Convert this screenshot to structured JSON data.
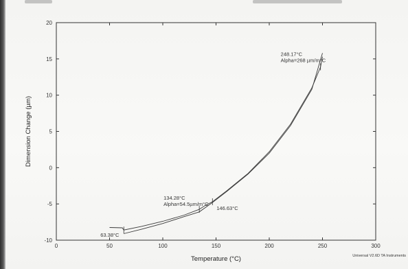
{
  "chart_data": {
    "type": "line",
    "xlabel": "Temperature (°C)",
    "ylabel": "Dimension Change (µm)",
    "xlim": [
      0,
      300
    ],
    "ylim": [
      -10,
      20
    ],
    "x_ticks": [
      "0",
      "50",
      "100",
      "150",
      "200",
      "250",
      "300"
    ],
    "y_ticks": [
      "20",
      "15",
      "10",
      "5",
      "0",
      "-5",
      "-10"
    ],
    "grid": false,
    "series": [
      {
        "points": [
          [
            50,
            -8.25
          ],
          [
            62,
            -8.3
          ],
          [
            63.38,
            -8.6
          ],
          [
            80,
            -8.1
          ],
          [
            100,
            -7.4
          ],
          [
            120,
            -6.55
          ],
          [
            134.28,
            -5.75
          ],
          [
            140,
            -5.2
          ],
          [
            146.63,
            -4.7
          ],
          [
            160,
            -3.2
          ],
          [
            180,
            -0.8
          ],
          [
            200,
            2.2
          ],
          [
            220,
            6.0
          ],
          [
            240,
            11.0
          ],
          [
            248.17,
            13.9
          ],
          [
            250,
            15.3
          ]
        ]
      },
      {
        "points": [
          [
            63.38,
            -9.1
          ],
          [
            80,
            -8.5
          ],
          [
            100,
            -7.7
          ],
          [
            120,
            -6.75
          ],
          [
            134.28,
            -6.1
          ],
          [
            146.63,
            -4.8
          ],
          [
            160,
            -3.3
          ],
          [
            180,
            -0.9
          ],
          [
            200,
            2.0
          ],
          [
            220,
            5.8
          ],
          [
            240,
            10.8
          ],
          [
            250,
            15.8
          ]
        ]
      }
    ],
    "annotations": [
      {
        "lines": [
          "63.38°C"
        ],
        "x": 63.38,
        "y": -8.6
      },
      {
        "lines": [
          "134.28°C",
          "Alpha=54.5µm/m°C"
        ],
        "x": 134.28,
        "y": -5.75
      },
      {
        "lines": [
          "146.63°C"
        ],
        "x": 146.63,
        "y": -4.7
      },
      {
        "lines": [
          "248.17°C",
          "Alpha=268 µm/m°C"
        ],
        "x": 248.17,
        "y": 13.9
      }
    ]
  },
  "footer": {
    "instrument": "Universal V2.6D TA Instruments"
  }
}
